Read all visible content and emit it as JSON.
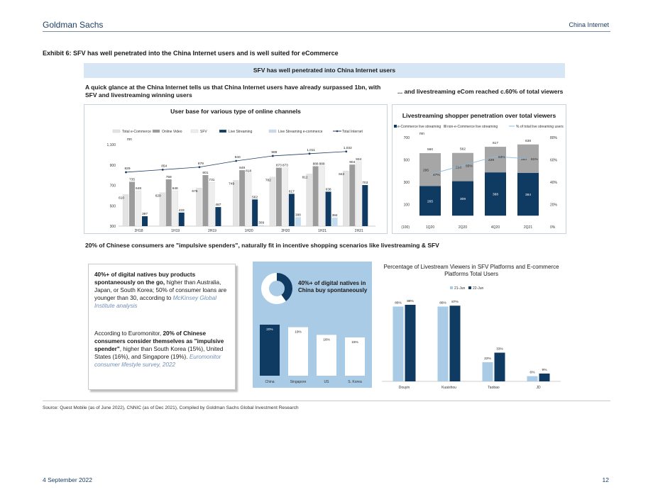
{
  "header": {
    "brand": "Goldman Sachs",
    "section": "China Internet"
  },
  "exhibit_title": "Exhibit 6: SFV has well penetrated into the China Internet users and is well suited for eCommerce",
  "banner": "SFV has well penetrated into China Internet users",
  "subheads": {
    "left": "A quick glance at the China Internet tells us that China Internet users have already surpassed 1bn, with SFV and livestreaming winning users",
    "right": "... and livestreaming eCom reached c.60% of total viewers"
  },
  "chart_data": [
    {
      "type": "bar",
      "title": "User base for various type of online channels",
      "unit": "mn",
      "categories": [
        "2H18",
        "1H19",
        "2H19",
        "1H20",
        "2H20",
        "1H21",
        "2H21"
      ],
      "ylim": [
        300,
        1100
      ],
      "yticks": [
        "300",
        "500",
        "700",
        "900",
        "1,100"
      ],
      "series": [
        {
          "name": "Total e-Commerce",
          "color": "#e3e3e3",
          "values": [
            610,
            629,
            675,
            749,
            782,
            812,
            842
          ]
        },
        {
          "name": "Online Video",
          "color": "#9c9c9c",
          "values": [
            735,
            759,
            801,
            849,
            873,
            888,
            904
          ]
        },
        {
          "name": "SFV",
          "color": "#eeeeee",
          "values": [
            648,
            648,
            731,
            818,
            873,
            888,
            934
          ]
        },
        {
          "name": "Live Streaming",
          "color": "#0f3b63",
          "values": [
            397,
            433,
            487,
            562,
            617,
            638,
            703
          ]
        },
        {
          "name": "Live Streaming e-commerce",
          "color": "#c5dcef",
          "values": [
            null,
            null,
            null,
            309,
            388,
            384,
            null
          ]
        },
        {
          "name": "Total Internet",
          "type": "line",
          "color": "#1f3f66",
          "values": [
            829,
            854,
            879,
            940,
            989,
            1011,
            1032
          ]
        }
      ],
      "labels": {
        "e_commerce": [
          "610",
          "629",
          "675",
          "749",
          "782",
          "812",
          "842"
        ],
        "online_video": [
          "735",
          "759",
          "801",
          "849",
          "873",
          "888",
          "904"
        ],
        "sfv": [
          "648",
          "648",
          "731",
          "818",
          "873",
          "888",
          "934"
        ],
        "live_streaming": [
          "397",
          "433",
          "487",
          "562",
          "617",
          "638",
          "703"
        ],
        "live_ecom": [
          "",
          "",
          "",
          "309",
          "388",
          "384",
          ""
        ],
        "total_internet": [
          "829",
          "854",
          "879",
          "940",
          "989",
          "1,011",
          "1,032"
        ]
      }
    },
    {
      "type": "bar",
      "stacked": true,
      "title": "Livestreaming shopper penetration over total viewers",
      "unit": "mn",
      "categories": [
        "1Q20",
        "2Q20",
        "4Q20",
        "2Q21"
      ],
      "ylim": [
        -100,
        700
      ],
      "yticks": [
        "(100)",
        "100",
        "300",
        "500",
        "700"
      ],
      "y2ticks": [
        "0%",
        "20%",
        "40%",
        "60%",
        "80%"
      ],
      "series": [
        {
          "name": "e-Commerce live streaming",
          "color": "#0f3b63",
          "values": [
            265,
            309,
            388,
            384
          ]
        },
        {
          "name": "non-e-Commerce live streaming",
          "color": "#a6a6a6",
          "values": [
            295,
            253,
            229,
            254
          ]
        },
        {
          "name": "% of total live streaming users",
          "type": "line",
          "color": "#8bbbe0",
          "values": [
            47,
            55,
            63,
            61
          ]
        }
      ],
      "totals": [
        "560",
        "562",
        "617",
        "638"
      ],
      "labels": {
        "ecom": [
          "265",
          "309",
          "388",
          "384"
        ],
        "non_ecom": [
          "295",
          "253",
          "229",
          "254"
        ],
        "pct": [
          "47%",
          "55%",
          "63%",
          "61%"
        ]
      }
    },
    {
      "type": "bar",
      "title": "40%+ of digital natives in China buy spontaneously",
      "categories": [
        "China",
        "Singapore",
        "US",
        "S. Korea"
      ],
      "values": [
        20,
        19,
        16,
        15
      ],
      "value_labels": [
        "20%",
        "19%",
        "16%",
        "15%"
      ],
      "donut_share": 40
    },
    {
      "type": "bar",
      "title": "Percentage of Livestream Viewers in SFV Platforms and E-commerce Platforms Total Users",
      "categories": [
        "Douyin",
        "Kuaishou",
        "Taobao",
        "JD"
      ],
      "series": [
        {
          "name": "21-Jun",
          "color": "#a9cbe6",
          "values": [
            86,
            86,
            22,
            6
          ]
        },
        {
          "name": "22-Jun",
          "color": "#0f3b63",
          "values": [
            88,
            87,
            33,
            9
          ]
        }
      ],
      "labels": {
        "jun21": [
          "86%",
          "86%",
          "22%",
          "6%"
        ],
        "jun22": [
          "88%",
          "87%",
          "33%",
          "9%"
        ]
      }
    }
  ],
  "section2_title": "20% of Chinese consumers are \"impulsive spenders\", naturally fit in incentive shopping scenarios like livestreaming & SFV",
  "textbox": {
    "p1_bold": "40%+ of digital natives buy products spontaneously on the go,",
    "p1_rest": " higher than Australia, Japan, or South Korea; 50% of consumer loans are younger than 30, according to ",
    "p1_link": "McKinsey Global Institute analysis",
    "p2_start": "According to Euromonitor, ",
    "p2_bold": "20% of Chinese consumers consider themselves as \"impulsive spender\"",
    "p2_rest": ", higher than South Korea (15%), United States (16%), and Singapore (19%). ",
    "p2_link": "Euromonitor consumer lifestyle survey, 2022"
  },
  "footer": {
    "source": "Source: Quest Mobile (as of June 2022), CNNIC (as of Dec 2021), Compiled by Goldman Sachs Global Investment Research",
    "date": "4 September 2022",
    "page": "12"
  },
  "colors": {
    "navy": "#0f3b63",
    "light_blue": "#a9cbe6",
    "banner": "#d6e6f4"
  }
}
